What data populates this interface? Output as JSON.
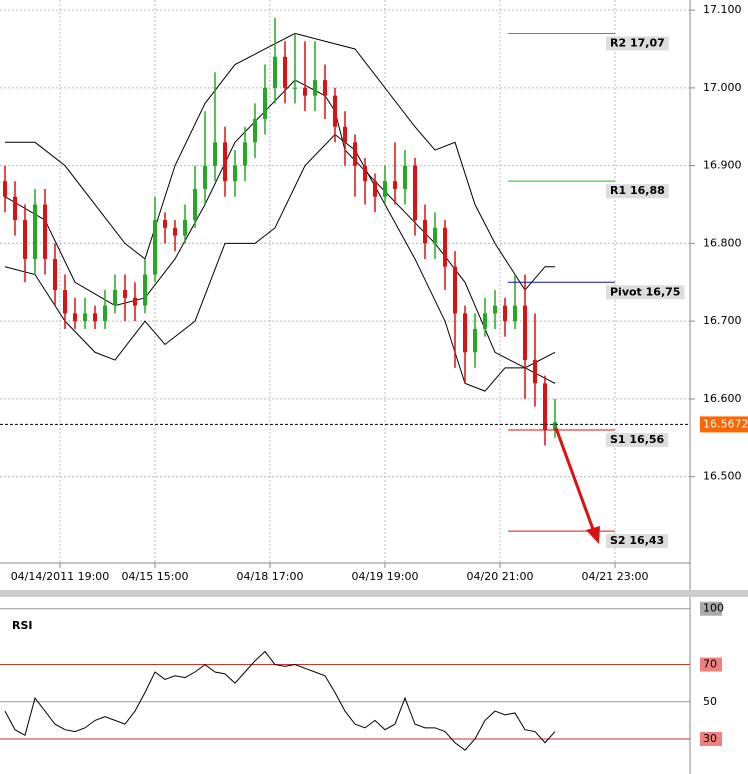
{
  "chart_data": [
    {
      "type": "candlestick",
      "open": [
        16.88,
        16.86,
        16.83,
        16.78,
        16.85,
        16.78,
        16.74,
        16.71,
        16.7,
        16.71,
        16.7,
        16.72,
        16.74,
        16.73,
        16.72,
        16.76,
        16.83,
        16.82,
        16.81,
        16.83,
        16.87,
        16.9,
        16.93,
        16.88,
        16.9,
        16.93,
        16.96,
        17.0,
        17.04,
        17.0,
        17.0,
        16.99,
        17.01,
        16.99,
        16.95,
        16.93,
        16.9,
        16.88,
        16.86,
        16.88,
        16.87,
        16.9,
        16.83,
        16.8,
        16.82,
        16.77,
        16.71,
        16.66,
        16.69,
        16.71,
        16.72,
        16.7,
        16.72,
        16.65,
        16.62,
        16.56
      ],
      "high": [
        16.9,
        16.88,
        16.85,
        16.87,
        16.87,
        16.8,
        16.76,
        16.73,
        16.73,
        16.72,
        16.74,
        16.76,
        16.76,
        16.75,
        16.78,
        16.86,
        16.84,
        16.83,
        16.85,
        16.9,
        16.97,
        17.02,
        16.95,
        16.92,
        16.95,
        16.98,
        17.03,
        17.09,
        17.06,
        17.07,
        17.06,
        17.06,
        17.03,
        17.0,
        16.97,
        16.94,
        16.91,
        16.89,
        16.9,
        16.93,
        16.92,
        16.91,
        16.85,
        16.84,
        16.83,
        16.79,
        16.72,
        16.71,
        16.73,
        16.74,
        16.73,
        16.76,
        16.76,
        16.71,
        16.63,
        16.6
      ],
      "low": [
        16.84,
        16.81,
        16.75,
        16.76,
        16.76,
        16.72,
        16.69,
        16.69,
        16.69,
        16.69,
        16.69,
        16.71,
        16.7,
        16.7,
        16.71,
        16.75,
        16.8,
        16.79,
        16.8,
        16.82,
        16.85,
        16.88,
        16.86,
        16.86,
        16.88,
        16.91,
        16.94,
        16.98,
        16.98,
        16.98,
        16.97,
        16.97,
        16.96,
        16.93,
        16.9,
        16.86,
        16.85,
        16.84,
        16.85,
        16.85,
        16.85,
        16.81,
        16.78,
        16.78,
        16.74,
        16.64,
        16.62,
        16.64,
        16.68,
        16.69,
        16.68,
        16.69,
        16.6,
        16.59,
        16.54,
        16.55
      ],
      "close": [
        16.86,
        16.83,
        16.78,
        16.85,
        16.78,
        16.74,
        16.71,
        16.7,
        16.71,
        16.7,
        16.72,
        16.74,
        16.73,
        16.72,
        16.76,
        16.83,
        16.82,
        16.81,
        16.83,
        16.87,
        16.9,
        16.93,
        16.88,
        16.9,
        16.93,
        16.96,
        17.0,
        17.04,
        17.0,
        17.0,
        16.99,
        17.01,
        16.99,
        16.95,
        16.93,
        16.9,
        16.88,
        16.86,
        16.88,
        16.87,
        16.9,
        16.83,
        16.8,
        16.82,
        16.77,
        16.71,
        16.66,
        16.69,
        16.71,
        16.72,
        16.7,
        16.72,
        16.65,
        16.62,
        16.56,
        16.57
      ],
      "up_color": "#22aa22",
      "down_color": "#dd1111",
      "bands": [
        {
          "color": "#000000",
          "x": [
            0,
            3,
            6,
            9,
            12,
            14,
            17,
            20,
            23,
            26,
            29,
            32,
            35,
            38,
            41,
            43,
            45,
            47,
            49,
            52,
            54,
            55
          ],
          "values": [
            16.93,
            16.93,
            16.9,
            16.85,
            16.8,
            16.78,
            16.9,
            16.98,
            17.03,
            17.05,
            17.07,
            17.06,
            17.05,
            17.0,
            16.95,
            16.92,
            16.93,
            16.85,
            16.8,
            16.74,
            16.77,
            16.77
          ]
        },
        {
          "color": "#000000",
          "x": [
            0,
            4,
            7,
            11,
            14,
            17,
            20,
            23,
            26,
            29,
            32,
            33,
            34,
            37,
            40,
            43,
            46,
            49,
            52,
            55
          ],
          "values": [
            16.86,
            16.83,
            16.75,
            16.72,
            16.73,
            16.78,
            16.85,
            16.93,
            16.97,
            17.01,
            16.99,
            16.97,
            16.92,
            16.88,
            16.84,
            16.8,
            16.75,
            16.66,
            16.64,
            16.62
          ]
        },
        {
          "color": "#000000",
          "x": [
            0,
            3,
            6,
            9,
            11,
            14,
            16,
            19,
            22,
            25,
            27,
            30,
            33,
            35,
            38,
            41,
            44,
            46,
            48,
            50,
            52,
            55
          ],
          "values": [
            16.77,
            16.76,
            16.7,
            16.66,
            16.65,
            16.7,
            16.67,
            16.7,
            16.8,
            16.8,
            16.82,
            16.9,
            16.94,
            16.92,
            16.85,
            16.78,
            16.7,
            16.62,
            16.61,
            16.64,
            16.64,
            16.66
          ]
        }
      ],
      "levels": [
        {
          "label": "R2 17,07",
          "value": 17.07,
          "color": "#22bb22"
        },
        {
          "label": "R1 16,88",
          "value": 16.88,
          "color": "#22bb22"
        },
        {
          "label": "Pivot 16,75",
          "value": 16.75,
          "color": "#1111aa"
        },
        {
          "label": "S1 16,56",
          "value": 16.56,
          "color": "#dd1111"
        },
        {
          "label": "S2 16,43",
          "value": 16.43,
          "color": "#dd1111"
        }
      ],
      "last_price": 16.5672,
      "last_price_color": "#ff6600",
      "xlim": [
        -0.5,
        68.5
      ],
      "xticks": [
        {
          "value": 5.5,
          "label": "04/14/2011 19:00"
        },
        {
          "value": 15,
          "label": "04/15 15:00"
        },
        {
          "value": 26.5,
          "label": "04/18 17:00"
        },
        {
          "value": 38,
          "label": "04/19 19:00"
        },
        {
          "value": 49.5,
          "label": "04/20 21:00"
        },
        {
          "value": 61,
          "label": "04/21 23:00"
        }
      ],
      "ylim": [
        16.389,
        17.113
      ],
      "yticks": [
        {
          "value": 16.5,
          "label": "16.500"
        },
        {
          "value": 16.6,
          "label": "16.600"
        },
        {
          "value": 16.7,
          "label": "16.700"
        },
        {
          "value": 16.8,
          "label": "16.800"
        },
        {
          "value": 16.9,
          "label": "16.900"
        },
        {
          "value": 17.0,
          "label": "17.000"
        },
        {
          "value": 17.1,
          "label": "17.100"
        }
      ],
      "grid": true
    },
    {
      "type": "line",
      "title": "RSI",
      "color": "#000000",
      "values": [
        45,
        35,
        32,
        52,
        45,
        38,
        35,
        34,
        36,
        40,
        42,
        40,
        38,
        45,
        55,
        66,
        62,
        64,
        63,
        66,
        70,
        66,
        65,
        60,
        66,
        72,
        77,
        70,
        69,
        70,
        68,
        66,
        64,
        55,
        45,
        38,
        36,
        40,
        35,
        38,
        52,
        38,
        36,
        36,
        34,
        28,
        24,
        30,
        40,
        45,
        43,
        44,
        35,
        34,
        28,
        34
      ],
      "xlim": [
        -0.5,
        68.5
      ],
      "ylim": [
        11.2,
        106.3
      ],
      "yticks": [
        30,
        50,
        70,
        100
      ],
      "tick_colors": [
        "#cc3333",
        "#999999",
        "#cc3333",
        "#999999"
      ],
      "tick_box_colors": [
        "#f08080",
        null,
        "#f08080",
        "#aaaaaa"
      ]
    }
  ]
}
